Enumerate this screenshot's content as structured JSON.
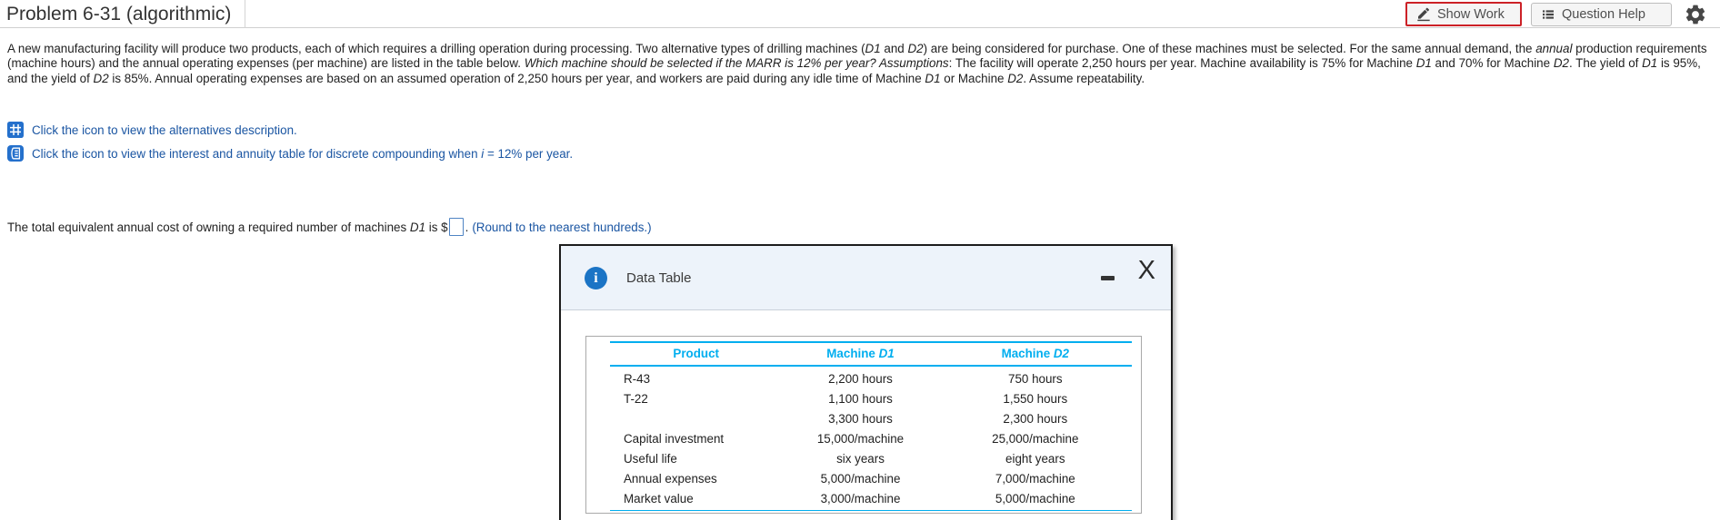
{
  "header": {
    "title": "Problem 6-31 (algorithmic)",
    "show_work_label": "Show Work",
    "question_help_label": "Question Help"
  },
  "problem": {
    "segments": [
      {
        "text": "A new manufacturing facility will produce two products, each of which requires a drilling operation during processing. Two alternative types of drilling machines ("
      },
      {
        "text": "D1",
        "italic": true
      },
      {
        "text": " and "
      },
      {
        "text": "D2",
        "italic": true
      },
      {
        "text": ") are being considered for purchase. One of these machines must be selected. For the same annual demand, the "
      },
      {
        "text": "annual",
        "italic": true
      },
      {
        "text": " production requirements (machine hours) and the annual operating expenses (per machine) are listed in the table below. "
      },
      {
        "text": "Which machine should be selected if the MARR is 12% per year? Assumptions",
        "italic": true
      },
      {
        "text": ": The facility will operate 2,250 hours per year. Machine availability is 75% for Machine "
      },
      {
        "text": "D1",
        "italic": true
      },
      {
        "text": " and 70% for Machine "
      },
      {
        "text": "D2",
        "italic": true
      },
      {
        "text": ". The yield of "
      },
      {
        "text": "D1",
        "italic": true
      },
      {
        "text": " is 95%, and the yield of "
      },
      {
        "text": "D2",
        "italic": true
      },
      {
        "text": " is 85%. Annual operating expenses are based on an assumed operation of 2,250 hours per year, and workers are paid during any idle time of Machine "
      },
      {
        "text": "D1",
        "italic": true
      },
      {
        "text": " or Machine "
      },
      {
        "text": "D2",
        "italic": true
      },
      {
        "text": ". Assume repeatability."
      }
    ]
  },
  "links": {
    "alternatives": {
      "icon": "table-grid-icon",
      "segments": [
        {
          "text": "Click the icon to view the alternatives description."
        }
      ]
    },
    "interest_table": {
      "icon": "book-icon",
      "segments": [
        {
          "text": "Click the icon to view the interest and annuity table for discrete compounding when "
        },
        {
          "text": "i",
          "italic": true
        },
        {
          "text": " = 12% per year."
        }
      ]
    }
  },
  "answer": {
    "prefix_segments": [
      {
        "text": "The total equivalent annual cost of owning a required number of machines "
      },
      {
        "text": "D1",
        "italic": true
      },
      {
        "text": " is $"
      }
    ],
    "input_value": "",
    "period": ".",
    "round_note": "(Round to the nearest hundreds.)"
  },
  "dialog": {
    "title": "Data Table",
    "info_glyph": "i",
    "close_label": "X",
    "icons": {
      "header_left": "info-icon",
      "minimize": "minus-icon",
      "close": "x-icon"
    },
    "table": {
      "columns": [
        {
          "segments": [
            {
              "text": "Product"
            }
          ]
        },
        {
          "segments": [
            {
              "text": "Machine "
            },
            {
              "text": "D1",
              "italic": true
            }
          ]
        },
        {
          "segments": [
            {
              "text": "Machine "
            },
            {
              "text": "D2",
              "italic": true
            }
          ]
        }
      ],
      "rows": [
        [
          "R-43",
          "2,200 hours",
          "750 hours"
        ],
        [
          "T-22",
          "1,100 hours",
          "1,550 hours"
        ],
        [
          "",
          "3,300 hours",
          "2,300 hours"
        ],
        [
          "Capital investment",
          "15,000/machine",
          "25,000/machine"
        ],
        [
          "Useful life",
          "six years",
          "eight years"
        ],
        [
          "Annual expenses",
          "5,000/machine",
          "7,000/machine"
        ],
        [
          "Market value",
          "3,000/machine",
          "5,000/machine"
        ]
      ]
    }
  },
  "colors": {
    "table_accent_cyan": "#00aeef",
    "link_blue": "#1a55a2",
    "icon_blue": "#2470cc",
    "info_icon_blue": "#1b74c5",
    "show_work_highlight_red": "#cc2127",
    "dialog_header_bg": "#edf3fa"
  }
}
